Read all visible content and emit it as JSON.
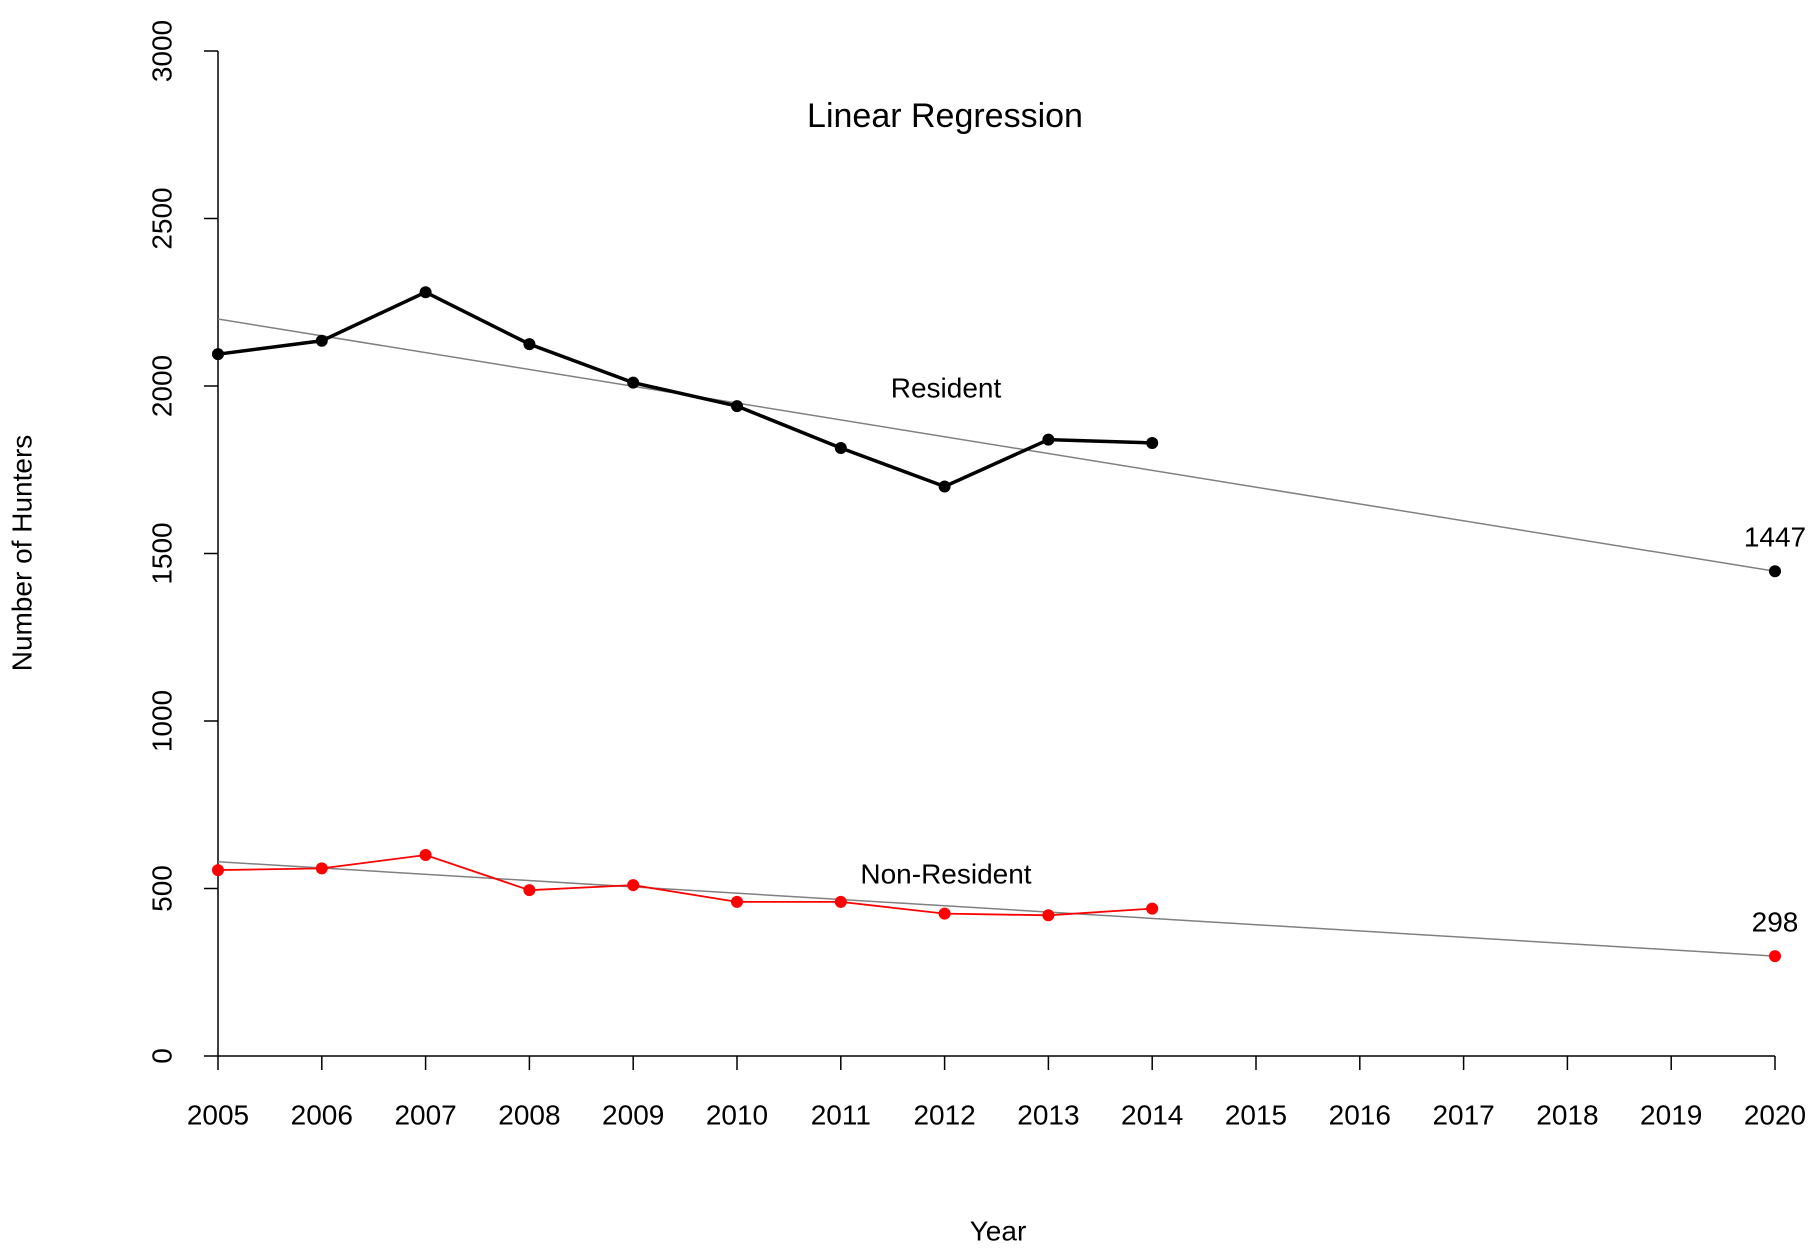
{
  "chart_data": {
    "type": "line",
    "title": "Linear Regression",
    "xlabel": "Year",
    "ylabel": "Number of Hunters",
    "xlim": [
      2005,
      2020
    ],
    "xticks": [
      2005,
      2006,
      2007,
      2008,
      2009,
      2010,
      2011,
      2012,
      2013,
      2014,
      2015,
      2016,
      2017,
      2018,
      2019,
      2020
    ],
    "ylim": [
      0,
      3000
    ],
    "yticks": [
      0,
      500,
      1000,
      1500,
      2000,
      2500,
      3000
    ],
    "series": [
      {
        "name": "Resident",
        "color": "#000000",
        "x": [
          2005,
          2006,
          2007,
          2008,
          2009,
          2010,
          2011,
          2012,
          2013,
          2014
        ],
        "values": [
          2095,
          2135,
          2280,
          2125,
          2010,
          1940,
          1815,
          1700,
          1840,
          1830
        ]
      },
      {
        "name": "Non-Resident",
        "color": "#ff0000",
        "x": [
          2005,
          2006,
          2007,
          2008,
          2009,
          2010,
          2011,
          2012,
          2013,
          2014
        ],
        "values": [
          555,
          560,
          600,
          495,
          510,
          460,
          460,
          425,
          420,
          440
        ]
      }
    ],
    "trends": [
      {
        "color": "#808080",
        "x": [
          2005,
          2020
        ],
        "values": [
          2200,
          1447
        ]
      },
      {
        "color": "#808080",
        "x": [
          2005,
          2020
        ],
        "values": [
          580,
          298
        ]
      }
    ],
    "predictions": [
      {
        "color": "#000000",
        "x": 2020,
        "value": 1447
      },
      {
        "color": "#ff0000",
        "x": 2020,
        "value": 298
      }
    ]
  }
}
